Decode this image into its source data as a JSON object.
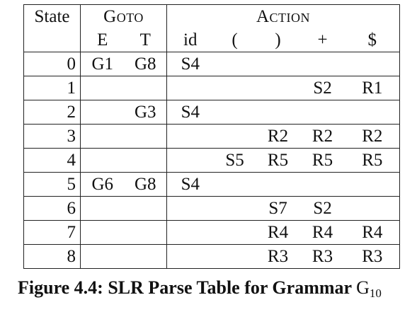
{
  "table": {
    "header": {
      "state": "State",
      "goto": "Goto",
      "action": "Action",
      "goto_cols": [
        "E",
        "T"
      ],
      "action_cols": [
        "id",
        "(",
        ")",
        "+",
        "$"
      ]
    },
    "rows": [
      {
        "state": "0",
        "E": "G1",
        "T": "G8",
        "id": "S4",
        "lp": "",
        "rp": "",
        "plus": "",
        "end": ""
      },
      {
        "state": "1",
        "E": "",
        "T": "",
        "id": "",
        "lp": "",
        "rp": "",
        "plus": "S2",
        "end": "R1"
      },
      {
        "state": "2",
        "E": "",
        "T": "G3",
        "id": "S4",
        "lp": "",
        "rp": "",
        "plus": "",
        "end": ""
      },
      {
        "state": "3",
        "E": "",
        "T": "",
        "id": "",
        "lp": "",
        "rp": "R2",
        "plus": "R2",
        "end": "R2"
      },
      {
        "state": "4",
        "E": "",
        "T": "",
        "id": "",
        "lp": "S5",
        "rp": "R5",
        "plus": "R5",
        "end": "R5"
      },
      {
        "state": "5",
        "E": "G6",
        "T": "G8",
        "id": "S4",
        "lp": "",
        "rp": "",
        "plus": "",
        "end": ""
      },
      {
        "state": "6",
        "E": "",
        "T": "",
        "id": "",
        "lp": "",
        "rp": "S7",
        "plus": "S2",
        "end": ""
      },
      {
        "state": "7",
        "E": "",
        "T": "",
        "id": "",
        "lp": "",
        "rp": "R4",
        "plus": "R4",
        "end": "R4"
      },
      {
        "state": "8",
        "E": "",
        "T": "",
        "id": "",
        "lp": "",
        "rp": "R3",
        "plus": "R3",
        "end": "R3"
      }
    ]
  },
  "caption": {
    "label": "Figure 4.4: SLR Parse Table for Grammar",
    "grammar_letter": "G",
    "grammar_sub": "10"
  }
}
